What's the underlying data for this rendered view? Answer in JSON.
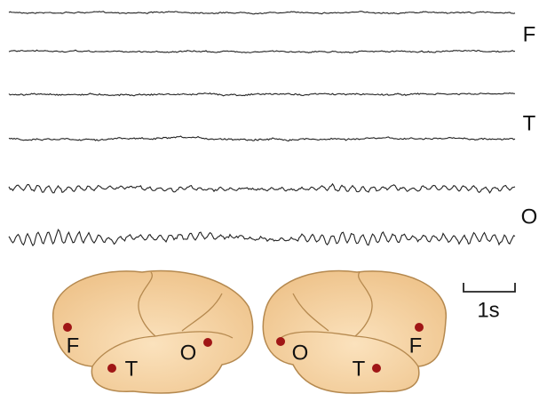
{
  "row_labels": [
    "F",
    "T",
    "O"
  ],
  "scale_bar": "1s",
  "brains": [
    {
      "labels": [
        "F",
        "T",
        "O"
      ]
    },
    {
      "labels": [
        "O",
        "T",
        "F"
      ]
    }
  ]
}
